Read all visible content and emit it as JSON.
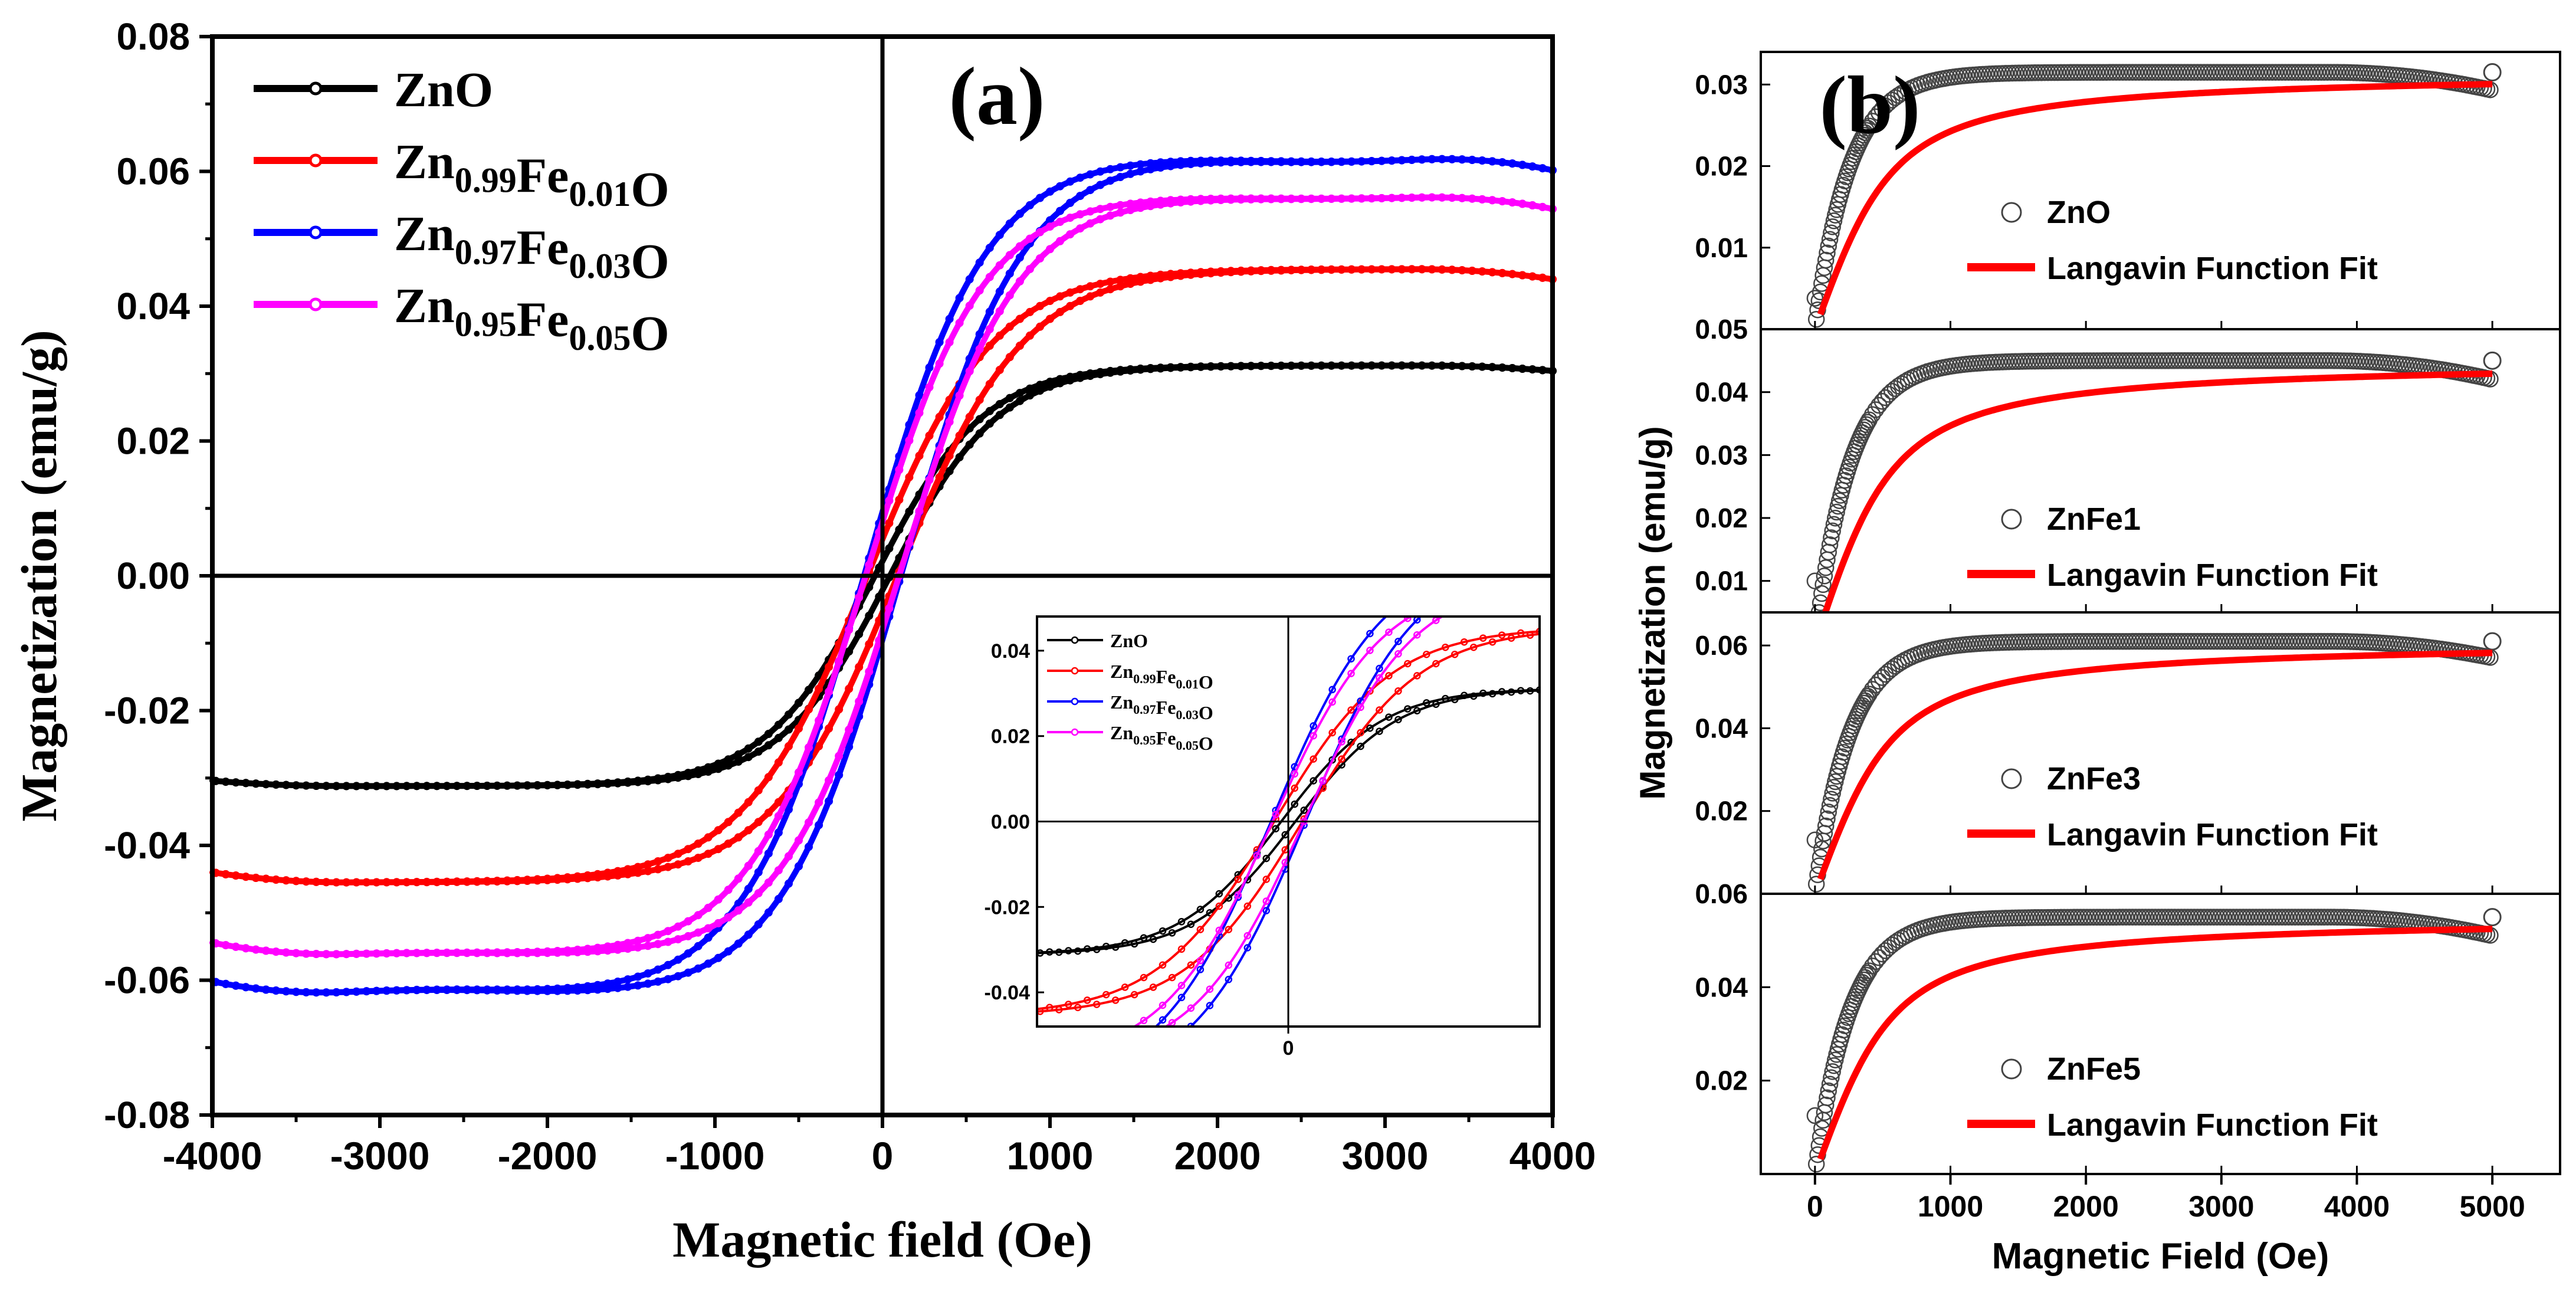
{
  "chart_data": [
    {
      "type": "line",
      "panel_label": "(a)",
      "title": "",
      "xlabel": "Magnetic field (Oe)",
      "ylabel": "Magnetization (emu/g)",
      "xlim": [
        -4000,
        4000
      ],
      "ylim": [
        -0.08,
        0.08
      ],
      "xticks": [
        -4000,
        -3000,
        -2000,
        -1000,
        0,
        1000,
        2000,
        3000,
        4000
      ],
      "xtick_labels": [
        "-4000",
        "-3000",
        "-2000",
        "-1000",
        "0",
        "1000",
        "2000",
        "3000",
        "4000"
      ],
      "yticks": [
        -0.08,
        -0.06,
        -0.04,
        -0.02,
        0.0,
        0.02,
        0.04,
        0.06,
        0.08
      ],
      "ytick_labels": [
        "-0.08",
        "-0.06",
        "-0.04",
        "-0.02",
        "0.00",
        "0.02",
        "0.04",
        "0.06",
        "0.08"
      ],
      "legend_position": "top-left",
      "series": [
        {
          "name": "ZnO",
          "base": "Zn",
          "parts": [
            [
              "ZnO",
              ""
            ]
          ],
          "color": "#000000",
          "Ms": 0.0312,
          "H0": 650,
          "Hc": 45,
          "end_drop": 0.0008,
          "dip": 0.0
        },
        {
          "name": "Zn0.99Fe0.01O",
          "parts": [
            [
              "Zn",
              "0.99"
            ],
            [
              "Fe",
              "0.01"
            ],
            [
              "O",
              ""
            ]
          ],
          "color": "#ff0000",
          "Ms": 0.0455,
          "H0": 750,
          "Hc": 90,
          "end_drop": 0.0015,
          "dip": 0.0
        },
        {
          "name": "Zn0.97Fe0.03O",
          "parts": [
            [
              "Zn",
              "0.97"
            ],
            [
              "Fe",
              "0.03"
            ],
            [
              "O",
              ""
            ]
          ],
          "color": "#0000ff",
          "Ms": 0.0625,
          "H0": 720,
          "Hc": 110,
          "end_drop": 0.0022,
          "dip": 0.001
        },
        {
          "name": "Zn0.95Fe0.05O",
          "parts": [
            [
              "Zn",
              "0.95"
            ],
            [
              "Fe",
              "0.05"
            ],
            [
              "O",
              ""
            ]
          ],
          "color": "#ff00ff",
          "Ms": 0.0565,
          "H0": 700,
          "Hc": 100,
          "end_drop": 0.002,
          "dip": 0.0005
        }
      ],
      "inset": {
        "xlim": [
          -1600,
          1600
        ],
        "ylim": [
          -0.048,
          0.048
        ],
        "xticks": [
          0
        ],
        "xtick_labels": [
          "0"
        ],
        "yticks": [
          -0.04,
          -0.02,
          0.0,
          0.02,
          0.04
        ],
        "ytick_labels": [
          "-0.04",
          "-0.02",
          "0.00",
          "0.02",
          "0.04"
        ]
      }
    },
    {
      "type": "scatter",
      "panel_label": "(b)",
      "xlabel": "Magnetic Field (Oe)",
      "ylabel": "Magnetization (emu/g)",
      "xlim": [
        -400,
        5500
      ],
      "xticks": [
        0,
        1000,
        2000,
        3000,
        4000,
        5000
      ],
      "xtick_labels": [
        "0",
        "1000",
        "2000",
        "3000",
        "4000",
        "5000"
      ],
      "fit_label": "Langavin Function Fit",
      "fit_color": "#ff0000",
      "panels": [
        {
          "name": "ZnO",
          "ylim": [
            0.0,
            0.034
          ],
          "yticks": [
            0.01,
            0.02,
            0.03
          ],
          "ytick_labels": [
            "0.01",
            "0.02",
            "0.03"
          ],
          "Ms": 0.0315,
          "H0": 230,
          "first_y": 0.0038,
          "end_drop": 0.0022
        },
        {
          "name": "ZnFe1",
          "ylim": [
            0.005,
            0.05
          ],
          "yticks": [
            0.01,
            0.02,
            0.03,
            0.04,
            0.05
          ],
          "ytick_labels": [
            "0.01",
            "0.02",
            "0.03",
            "0.04",
            "0.05"
          ],
          "Ms": 0.045,
          "H0": 230,
          "first_y": 0.01,
          "end_drop": 0.003
        },
        {
          "name": "ZnFe3",
          "ylim": [
            0.0,
            0.068
          ],
          "yticks": [
            0.02,
            0.04,
            0.06
          ],
          "ytick_labels": [
            "0.02",
            "0.04",
            "0.06"
          ],
          "Ms": 0.061,
          "H0": 230,
          "first_y": 0.013,
          "end_drop": 0.004
        },
        {
          "name": "ZnFe5",
          "ylim": [
            0.0,
            0.06
          ],
          "yticks": [
            0.02,
            0.04,
            0.06
          ],
          "ytick_labels": [
            "0.02",
            "0.04",
            "0.06"
          ],
          "Ms": 0.055,
          "H0": 230,
          "first_y": 0.0125,
          "end_drop": 0.004
        }
      ]
    }
  ]
}
